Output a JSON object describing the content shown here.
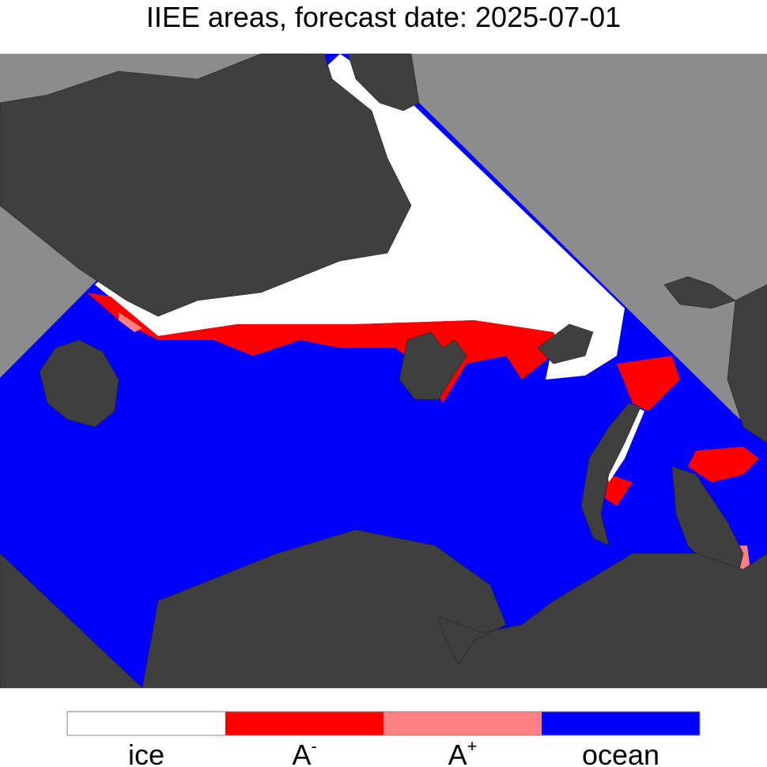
{
  "title": "IIEE areas, forecast date: 2025-07-01",
  "legend": [
    {
      "label": "ice",
      "color": "#ffffff"
    },
    {
      "label": "A",
      "sup": "-",
      "color": "#ff0000"
    },
    {
      "label": "A",
      "sup": "+",
      "color": "#ff8080"
    },
    {
      "label": "ocean",
      "color": "#0000ff"
    }
  ]
}
